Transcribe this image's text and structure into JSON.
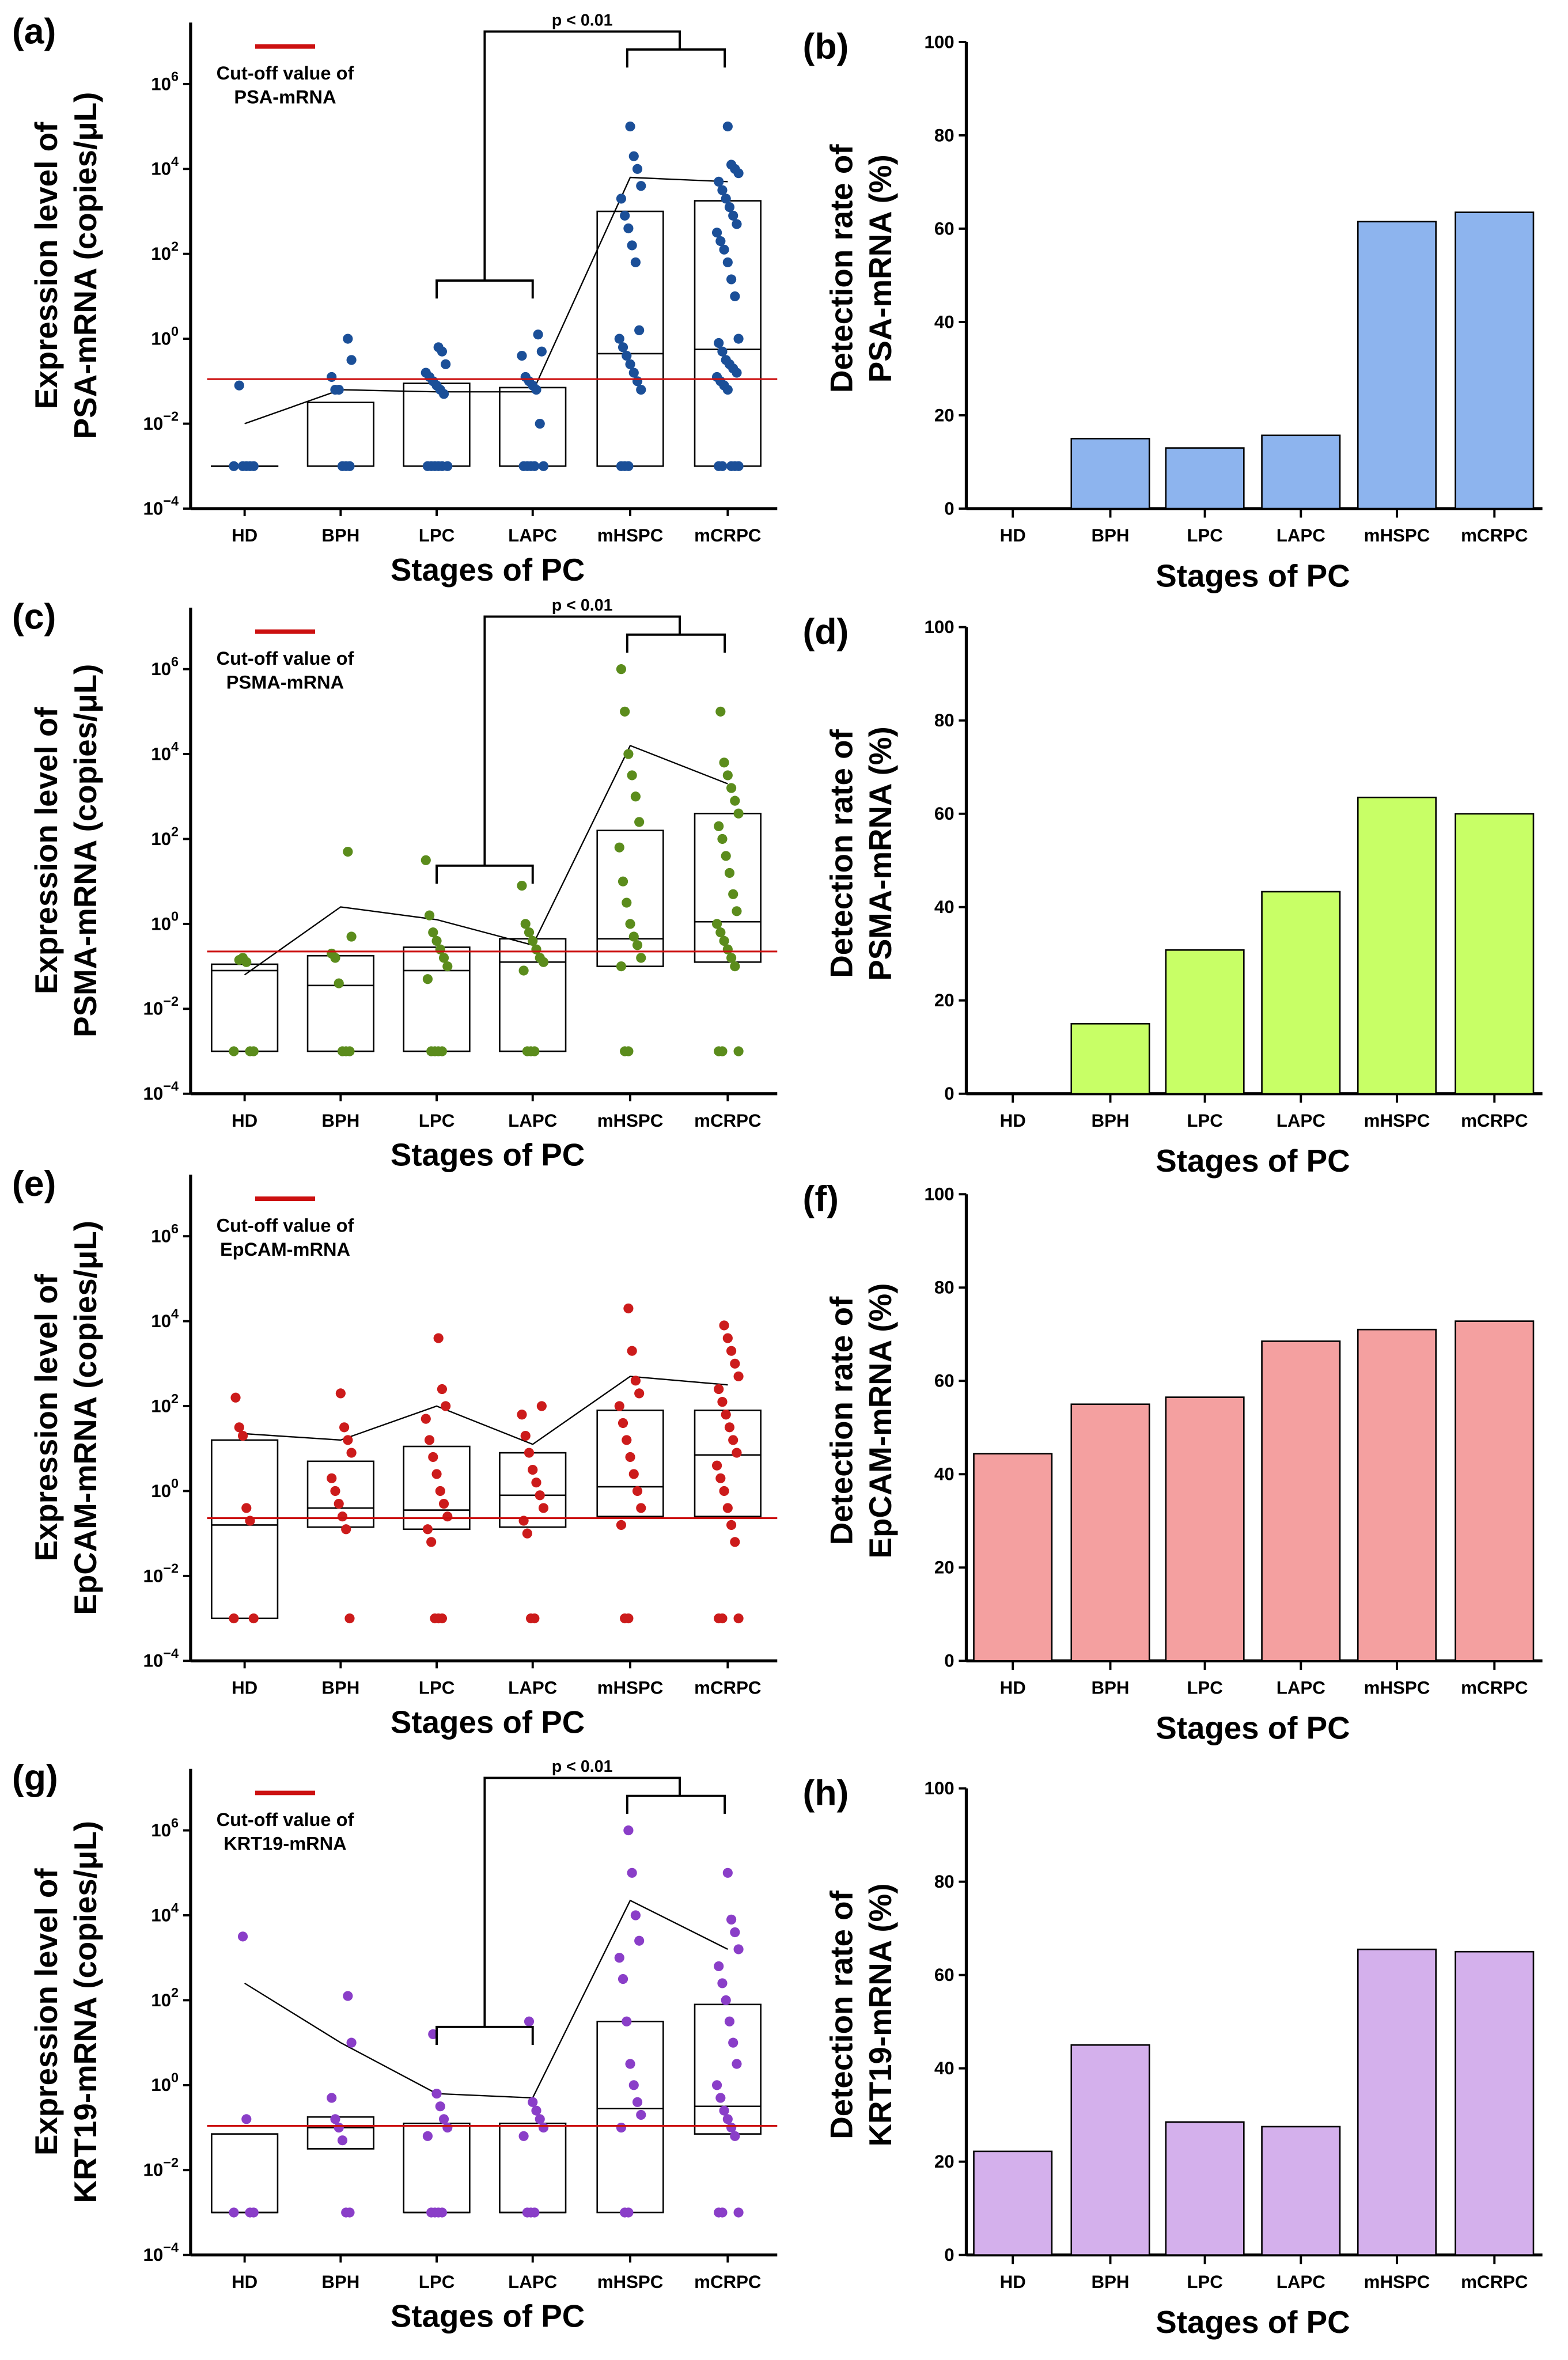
{
  "chart_data": [
    {
      "panel": "(a)",
      "type": "box-scatter",
      "ylabel_line1": "Expression level of",
      "ylabel_line2": "PSA-mRNA (copies/μL)",
      "xlabel": "Stages of PC",
      "yscale": "log",
      "ylim": [
        0.0001,
        20000000
      ],
      "yticks": [
        "10^-4",
        "10^-2",
        "10^0",
        "10^2",
        "10^4",
        "10^6"
      ],
      "categories": [
        "HD",
        "BPH",
        "LPC",
        "LAPC",
        "mHSPC",
        "mCRPC"
      ],
      "legend": [
        "Cut-off value of",
        "PSA-mRNA"
      ],
      "cutoff_log10": -0.95,
      "significance": "p < 0.01",
      "dot_color": "#1b4f98",
      "box_log10": [
        [
          -3,
          -3,
          -3
        ],
        [
          -3,
          -3,
          -1.5
        ],
        [
          -3,
          -3,
          -1.05
        ],
        [
          -3,
          -3,
          -1.15
        ],
        [
          -3,
          -0.35,
          3
        ],
        [
          -3,
          -0.25,
          3.25
        ]
      ],
      "mean_log10": [
        -2,
        -1.2,
        -1.25,
        -1.25,
        3.8,
        3.7
      ],
      "points_log10": [
        [
          -3,
          -3,
          -3,
          -3,
          -3,
          -1.1
        ],
        [
          -3,
          -3,
          -3,
          -1.2,
          -1.2,
          -0.9,
          -0.5,
          0
        ],
        [
          -3,
          -3,
          -3,
          -3,
          -3,
          -3,
          -1.3,
          -1.2,
          -1.1,
          -1,
          -0.9,
          -0.8,
          -0.6,
          -0.3,
          -0.2
        ],
        [
          -3,
          -3,
          -3,
          -3,
          -3,
          -2,
          -1.2,
          -1.1,
          -1,
          -0.9,
          -0.4,
          -0.3,
          0.1
        ],
        [
          -3,
          -3,
          -3,
          -1.2,
          -1,
          -0.8,
          -0.6,
          -0.4,
          -0.2,
          0,
          0.2,
          1.8,
          2.2,
          2.6,
          2.9,
          3.3,
          3.6,
          4,
          4.3,
          5
        ],
        [
          -3,
          -3,
          -3,
          -3,
          -3,
          -1.2,
          -1.1,
          -1,
          -0.9,
          -0.8,
          -0.7,
          -0.6,
          -0.5,
          -0.3,
          -0.1,
          0,
          1,
          1.4,
          1.8,
          2.1,
          2.3,
          2.5,
          2.7,
          2.9,
          3.1,
          3.3,
          3.5,
          3.7,
          3.9,
          4,
          4.1,
          5
        ]
      ]
    },
    {
      "panel": "(b)",
      "type": "bar",
      "ylabel_line1": "Detection rate of",
      "ylabel_line2": "PSA-mRNA (%)",
      "xlabel": "Stages of PC",
      "ylim": [
        0,
        100
      ],
      "yticks": [
        "0",
        "20",
        "40",
        "60",
        "80",
        "100"
      ],
      "categories": [
        "HD",
        "BPH",
        "LPC",
        "LAPC",
        "mHSPC",
        "mCRPC"
      ],
      "values": [
        0,
        15,
        13,
        15.7,
        61.5,
        63.5
      ],
      "bar_color": "#8db4ee"
    },
    {
      "panel": "(c)",
      "type": "box-scatter",
      "ylabel_line1": "Expression level of",
      "ylabel_line2": "PSMA-mRNA (copies/μL)",
      "xlabel": "Stages of PC",
      "yscale": "log",
      "ylim": [
        0.0001,
        20000000
      ],
      "yticks": [
        "10^-4",
        "10^-2",
        "10^0",
        "10^2",
        "10^4",
        "10^6"
      ],
      "categories": [
        "HD",
        "BPH",
        "LPC",
        "LAPC",
        "mHSPC",
        "mCRPC"
      ],
      "legend": [
        "Cut-off value of",
        "PSMA-mRNA"
      ],
      "cutoff_log10": -0.65,
      "significance": "p < 0.01",
      "dot_color": "#5b8c1c",
      "box_log10": [
        [
          -3,
          -1.1,
          -0.95
        ],
        [
          -3,
          -1.45,
          -0.75
        ],
        [
          -3,
          -1.1,
          -0.55
        ],
        [
          -3,
          -0.9,
          -0.35
        ],
        [
          -1,
          -0.35,
          2.2
        ],
        [
          -0.9,
          0.05,
          2.6
        ]
      ],
      "mean_log10": [
        -1.2,
        0.4,
        0.1,
        -0.5,
        4.2,
        3.3
      ],
      "points_log10": [
        [
          -3,
          -3,
          -3,
          -0.9,
          -0.8,
          -0.85
        ],
        [
          -3,
          -3,
          -3,
          -1.4,
          -0.8,
          -0.7,
          -0.3,
          1.7
        ],
        [
          -3,
          -3,
          -3,
          -3,
          -1.3,
          -1,
          -0.8,
          -0.6,
          -0.4,
          -0.2,
          0.2,
          1.5
        ],
        [
          -3,
          -3,
          -3,
          -1.1,
          -0.9,
          -0.8,
          -0.6,
          -0.4,
          -0.2,
          0,
          0.9
        ],
        [
          -3,
          -3,
          -1,
          -0.8,
          -0.5,
          -0.3,
          0,
          0.5,
          1,
          1.8,
          2.4,
          3,
          3.5,
          4,
          5,
          6
        ],
        [
          -3,
          -3,
          -3,
          -1,
          -0.8,
          -0.6,
          -0.4,
          -0.2,
          0,
          0.3,
          0.7,
          1.2,
          1.6,
          2,
          2.3,
          2.6,
          2.9,
          3.2,
          3.5,
          3.8,
          5
        ]
      ]
    },
    {
      "panel": "(d)",
      "type": "bar",
      "ylabel_line1": "Detection rate of",
      "ylabel_line2": "PSMA-mRNA (%)",
      "xlabel": "Stages of PC",
      "ylim": [
        0,
        100
      ],
      "yticks": [
        "0",
        "20",
        "40",
        "60",
        "80",
        "100"
      ],
      "categories": [
        "HD",
        "BPH",
        "LPC",
        "LAPC",
        "mHSPC",
        "mCRPC"
      ],
      "values": [
        0,
        15,
        30.8,
        43.3,
        63.5,
        60
      ],
      "bar_color": "#c8ff66"
    },
    {
      "panel": "(e)",
      "type": "box-scatter",
      "ylabel_line1": "Expression level of",
      "ylabel_line2": "EpCAM-mRNA (copies/μL)",
      "xlabel": "Stages of PC",
      "yscale": "log",
      "ylim": [
        0.0001,
        20000000
      ],
      "yticks": [
        "10^-4",
        "10^-2",
        "10^0",
        "10^2",
        "10^4",
        "10^6"
      ],
      "categories": [
        "HD",
        "BPH",
        "LPC",
        "LAPC",
        "mHSPC",
        "mCRPC"
      ],
      "legend": [
        "Cut-off value of",
        "EpCAM-mRNA"
      ],
      "cutoff_log10": -0.64,
      "significance": "",
      "dot_color": "#cc1b1b",
      "box_log10": [
        [
          -3,
          -0.8,
          1.2
        ],
        [
          -0.85,
          -0.4,
          0.7
        ],
        [
          -0.9,
          -0.45,
          1.05
        ],
        [
          -0.85,
          -0.1,
          0.9
        ],
        [
          -0.6,
          0.1,
          1.9
        ],
        [
          -0.6,
          0.85,
          1.9
        ]
      ],
      "mean_log10": [
        1.35,
        1.2,
        2,
        1.1,
        2.7,
        2.5
      ],
      "points_log10": [
        [
          -3,
          -3,
          -0.7,
          -0.4,
          1.3,
          1.5,
          2.2
        ],
        [
          -3,
          -0.9,
          -0.6,
          -0.3,
          0,
          0.3,
          0.9,
          1.2,
          1.5,
          2.3
        ],
        [
          -3,
          -3,
          -3,
          -1.2,
          -0.9,
          -0.6,
          -0.3,
          0,
          0.4,
          0.8,
          1.2,
          1.7,
          2,
          2.4,
          3.6
        ],
        [
          -3,
          -3,
          -1,
          -0.7,
          -0.4,
          -0.1,
          0.2,
          0.5,
          0.9,
          1.3,
          1.8,
          2
        ],
        [
          -3,
          -3,
          -0.8,
          -0.4,
          0,
          0.4,
          0.8,
          1.2,
          1.6,
          2,
          2.3,
          2.6,
          3.3,
          4.3
        ],
        [
          -3,
          -3,
          -3,
          -1.2,
          -0.8,
          -0.4,
          0,
          0.3,
          0.6,
          0.9,
          1.2,
          1.5,
          1.8,
          2.1,
          2.4,
          2.7,
          3,
          3.3,
          3.6,
          3.9
        ]
      ]
    },
    {
      "panel": "(f)",
      "type": "bar",
      "ylabel_line1": "Detection rate of",
      "ylabel_line2": "EpCAM-mRNA (%)",
      "xlabel": "Stages of PC",
      "ylim": [
        0,
        100
      ],
      "yticks": [
        "0",
        "20",
        "40",
        "60",
        "80",
        "100"
      ],
      "categories": [
        "HD",
        "BPH",
        "LPC",
        "LAPC",
        "mHSPC",
        "mCRPC"
      ],
      "values": [
        44.4,
        55,
        56.5,
        68.5,
        71,
        72.8
      ],
      "bar_color": "#f4a0a0"
    },
    {
      "panel": "(g)",
      "type": "box-scatter",
      "ylabel_line1": "Expression level of",
      "ylabel_line2": "KRT19-mRNA (copies/μL)",
      "xlabel": "Stages of PC",
      "yscale": "log",
      "ylim": [
        0.0001,
        20000000
      ],
      "yticks": [
        "10^-4",
        "10^-2",
        "10^0",
        "10^2",
        "10^4",
        "10^6"
      ],
      "categories": [
        "HD",
        "BPH",
        "LPC",
        "LAPC",
        "mHSPC",
        "mCRPC"
      ],
      "legend": [
        "Cut-off value of",
        "KRT19-mRNA"
      ],
      "cutoff_log10": -0.96,
      "significance": "p < 0.01",
      "dot_color": "#8a3ec8",
      "box_log10": [
        [
          -3,
          -3,
          -1.15
        ],
        [
          -1.5,
          -1,
          -0.75
        ],
        [
          -3,
          -3,
          -0.9
        ],
        [
          -3,
          -3,
          -0.9
        ],
        [
          -3,
          -0.55,
          1.5
        ],
        [
          -1.15,
          -0.5,
          1.9
        ]
      ],
      "mean_log10": [
        2.4,
        1,
        -0.2,
        -0.3,
        4.35,
        3.2
      ],
      "points_log10": [
        [
          -3,
          -3,
          -3,
          -0.8,
          3.5
        ],
        [
          -3,
          -3,
          -1.3,
          -1,
          -0.8,
          -0.3,
          1,
          2.1
        ],
        [
          -3,
          -3,
          -3,
          -3,
          -1.2,
          -1,
          -0.8,
          -0.5,
          -0.2,
          1.2
        ],
        [
          -3,
          -3,
          -3,
          -1.2,
          -1,
          -0.8,
          -0.6,
          -0.4,
          1.5
        ],
        [
          -3,
          -3,
          -1,
          -0.7,
          -0.4,
          0,
          0.5,
          1.5,
          2.5,
          3,
          3.4,
          4,
          5,
          6
        ],
        [
          -3,
          -3,
          -3,
          -1.2,
          -1,
          -0.8,
          -0.6,
          -0.3,
          0,
          0.5,
          1,
          1.5,
          2,
          2.4,
          2.8,
          3.2,
          3.6,
          3.9,
          5
        ]
      ]
    },
    {
      "panel": "(h)",
      "type": "bar",
      "ylabel_line1": "Detection rate of",
      "ylabel_line2": "KRT19-mRNA (%)",
      "xlabel": "Stages of PC",
      "ylim": [
        0,
        100
      ],
      "yticks": [
        "0",
        "20",
        "40",
        "60",
        "80",
        "100"
      ],
      "categories": [
        "HD",
        "BPH",
        "LPC",
        "LAPC",
        "mHSPC",
        "mCRPC"
      ],
      "values": [
        22.2,
        45,
        28.5,
        27.5,
        65.5,
        65
      ],
      "bar_color": "#d4b0ec"
    }
  ]
}
